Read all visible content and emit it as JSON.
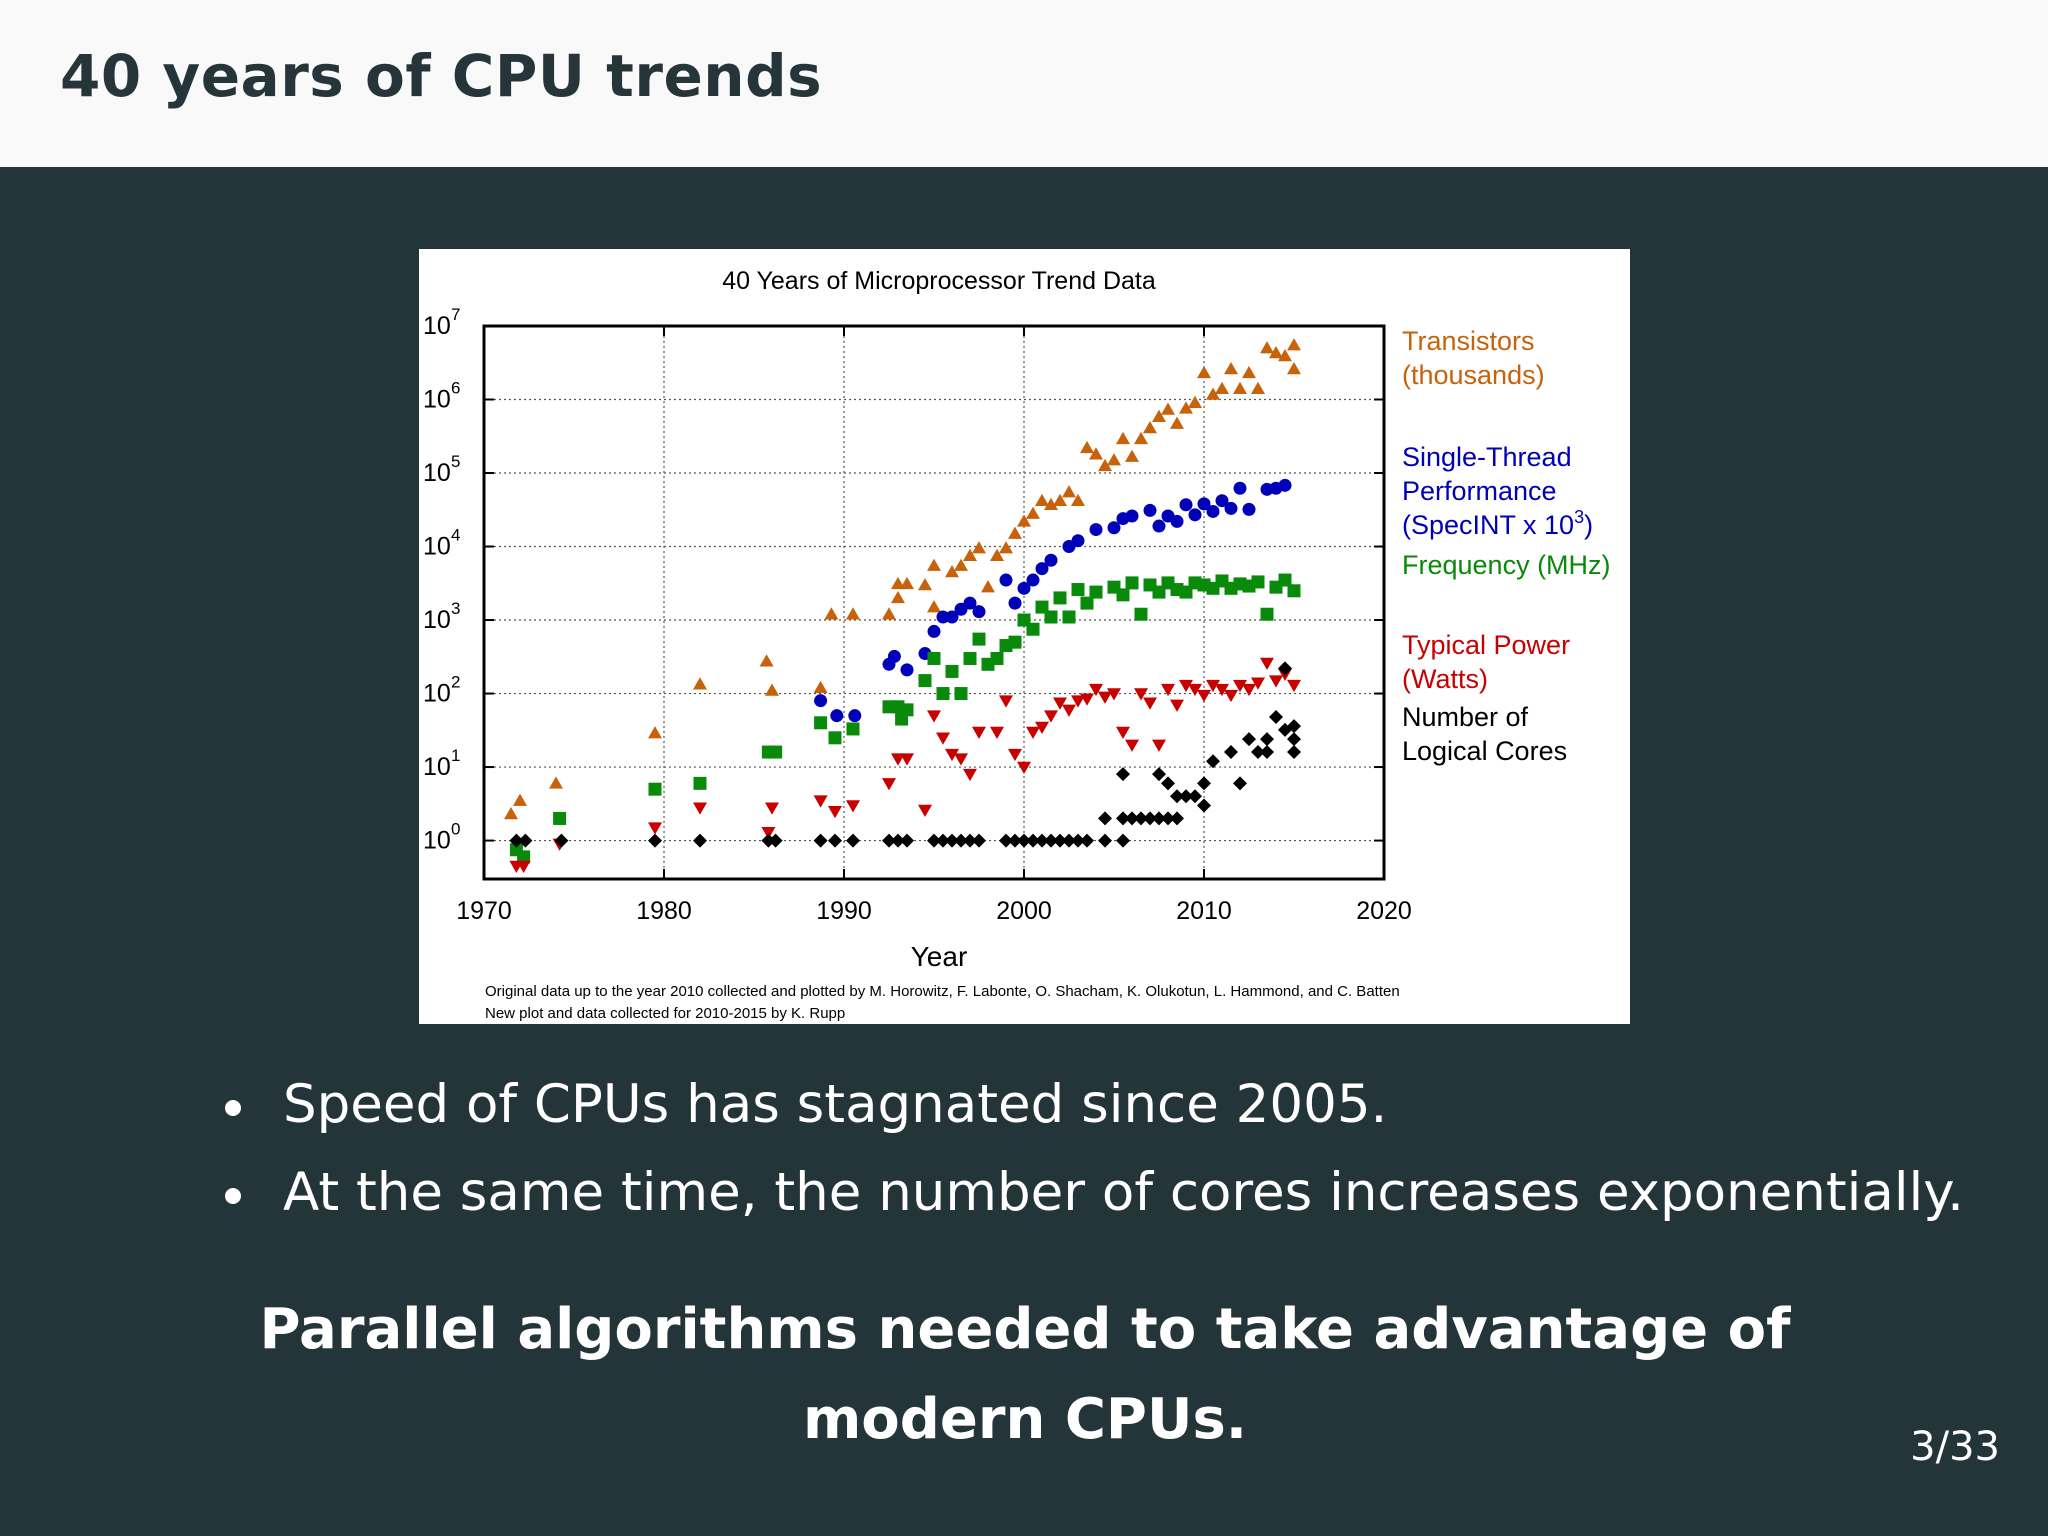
{
  "slide": {
    "title": "40 years of CPU trends",
    "bullets": [
      "Speed of CPUs has stagnated since 2005.",
      "At the same time, the number of cores increases exponentially."
    ],
    "conclusion": "Parallel algorithms needed to take advantage of modern CPUs.",
    "page": "3/33",
    "colors": {
      "header_bg": "#f9f9f9",
      "slide_bg": "#243539",
      "title_text": "#263539"
    }
  },
  "chart_data": {
    "type": "scatter",
    "title": "40 Years of Microprocessor Trend Data",
    "xlabel": "Year",
    "ylabel": "",
    "yscale": "log",
    "xlim": [
      1970,
      2020
    ],
    "ylim": [
      0.3,
      10000000
    ],
    "xticks": [
      "1970",
      "1980",
      "1990",
      "2000",
      "2010",
      "2020"
    ],
    "yticks": [
      {
        "base": "10",
        "exp": "0"
      },
      {
        "base": "10",
        "exp": "1"
      },
      {
        "base": "10",
        "exp": "2"
      },
      {
        "base": "10",
        "exp": "3"
      },
      {
        "base": "10",
        "exp": "4"
      },
      {
        "base": "10",
        "exp": "5"
      },
      {
        "base": "10",
        "exp": "6"
      },
      {
        "base": "10",
        "exp": "7"
      }
    ],
    "grid": true,
    "legend_position": "right",
    "footnote": [
      "Original data up to the year 2010 collected and plotted by M. Horowitz, F. Labonte, O. Shacham, K. Olukotun, L. Hammond, and C. Batten",
      "New plot and data collected for 2010-2015 by K. Rupp"
    ],
    "series": [
      {
        "name_lines": [
          "Transistors",
          "(thousands)"
        ],
        "color": "#c8620a",
        "marker": "triangle-up",
        "points": [
          [
            1971.5,
            2.3
          ],
          [
            1972,
            3.5
          ],
          [
            1974,
            6
          ],
          [
            1979.5,
            29
          ],
          [
            1982,
            134
          ],
          [
            1985.7,
            275
          ],
          [
            1986,
            110
          ],
          [
            1988.7,
            120
          ],
          [
            1989.3,
            1200
          ],
          [
            1990.5,
            1200
          ],
          [
            1992.5,
            1200
          ],
          [
            1993,
            3100
          ],
          [
            1993.5,
            3100
          ],
          [
            1993,
            2000
          ],
          [
            1994.5,
            3000
          ],
          [
            1995,
            5500
          ],
          [
            1995,
            1500
          ],
          [
            1996,
            4500
          ],
          [
            1996.5,
            5500
          ],
          [
            1997,
            7500
          ],
          [
            1997.5,
            9500
          ],
          [
            1998.5,
            7500
          ],
          [
            1998,
            2800
          ],
          [
            1999,
            9500
          ],
          [
            1999.5,
            15000
          ],
          [
            2000,
            22000
          ],
          [
            2000.5,
            28000
          ],
          [
            2001,
            42000
          ],
          [
            2001.5,
            37000
          ],
          [
            2002,
            42000
          ],
          [
            2002.5,
            55000
          ],
          [
            2003,
            42000
          ],
          [
            2003.5,
            220000
          ],
          [
            2004,
            180000
          ],
          [
            2004.5,
            125000
          ],
          [
            2005,
            150000
          ],
          [
            2005.5,
            291000
          ],
          [
            2006,
            167000
          ],
          [
            2006.5,
            291000
          ],
          [
            2007,
            410000
          ],
          [
            2007.5,
            582000
          ],
          [
            2008,
            731000
          ],
          [
            2008.5,
            470000
          ],
          [
            2009,
            758000
          ],
          [
            2009.5,
            904000
          ],
          [
            2010,
            2300000
          ],
          [
            2010.5,
            1170000
          ],
          [
            2011,
            1400000
          ],
          [
            2011.5,
            2600000
          ],
          [
            2012,
            1400000
          ],
          [
            2012.5,
            2300000
          ],
          [
            2013,
            1400000
          ],
          [
            2013.5,
            5000000
          ],
          [
            2014,
            4300000
          ],
          [
            2014.5,
            3900000
          ],
          [
            2015,
            5500000
          ],
          [
            2015,
            2600000
          ]
        ]
      },
      {
        "name_lines": [
          "Single-Thread",
          "Performance",
          "(SpecINT x 10^3)"
        ],
        "color": "#0000b8",
        "marker": "circle",
        "points": [
          [
            1988.7,
            80
          ],
          [
            1989.6,
            50
          ],
          [
            1990.6,
            50
          ],
          [
            1992.5,
            250
          ],
          [
            1992.8,
            320
          ],
          [
            1993.5,
            210
          ],
          [
            1994.5,
            350
          ],
          [
            1995,
            700
          ],
          [
            1995.5,
            1100
          ],
          [
            1996,
            1100
          ],
          [
            1996.5,
            1400
          ],
          [
            1997,
            1700
          ],
          [
            1997.5,
            1300
          ],
          [
            1999,
            3500
          ],
          [
            1999.5,
            1700
          ],
          [
            2000,
            2700
          ],
          [
            2000.5,
            3500
          ],
          [
            2001,
            5000
          ],
          [
            2001.5,
            6500
          ],
          [
            2002.5,
            10000
          ],
          [
            2003,
            12000
          ],
          [
            2004,
            17000
          ],
          [
            2005,
            18000
          ],
          [
            2005.5,
            24000
          ],
          [
            2006,
            26000
          ],
          [
            2007,
            31000
          ],
          [
            2007.5,
            19000
          ],
          [
            2008,
            26000
          ],
          [
            2008.5,
            22000
          ],
          [
            2009,
            37000
          ],
          [
            2009.5,
            27000
          ],
          [
            2010,
            38000
          ],
          [
            2010.5,
            30000
          ],
          [
            2011,
            42000
          ],
          [
            2011.5,
            33000
          ],
          [
            2012,
            62000
          ],
          [
            2012.5,
            32000
          ],
          [
            2013.5,
            60000
          ],
          [
            2014,
            62000
          ],
          [
            2014.5,
            68000
          ]
        ]
      },
      {
        "name_lines": [
          "Frequency (MHz)"
        ],
        "color": "#0a8a0a",
        "marker": "square",
        "points": [
          [
            1971.8,
            0.75
          ],
          [
            1972.2,
            0.6
          ],
          [
            1974.2,
            2
          ],
          [
            1979.5,
            5
          ],
          [
            1982,
            6
          ],
          [
            1985.8,
            16
          ],
          [
            1986.2,
            16
          ],
          [
            1988.7,
            40
          ],
          [
            1989.5,
            25
          ],
          [
            1990.5,
            33
          ],
          [
            1992.5,
            66
          ],
          [
            1993,
            66
          ],
          [
            1993.5,
            60
          ],
          [
            1993.2,
            45
          ],
          [
            1994.5,
            150
          ],
          [
            1995,
            300
          ],
          [
            1995.5,
            100
          ],
          [
            1996,
            200
          ],
          [
            1996.5,
            100
          ],
          [
            1997,
            300
          ],
          [
            1997.5,
            550
          ],
          [
            1998,
            250
          ],
          [
            1998.5,
            300
          ],
          [
            1999,
            450
          ],
          [
            1999.5,
            500
          ],
          [
            2000,
            1000
          ],
          [
            2000.5,
            750
          ],
          [
            2001,
            1500
          ],
          [
            2001.5,
            1100
          ],
          [
            2002,
            2000
          ],
          [
            2002.5,
            1100
          ],
          [
            2003,
            2600
          ],
          [
            2003.5,
            1700
          ],
          [
            2004,
            2400
          ],
          [
            2005,
            2800
          ],
          [
            2005.5,
            2200
          ],
          [
            2006,
            3200
          ],
          [
            2006.5,
            1200
          ],
          [
            2007,
            3000
          ],
          [
            2007.5,
            2400
          ],
          [
            2008,
            3200
          ],
          [
            2008.5,
            2600
          ],
          [
            2009,
            2400
          ],
          [
            2009.5,
            3200
          ],
          [
            2010,
            3000
          ],
          [
            2010.5,
            2700
          ],
          [
            2011,
            3400
          ],
          [
            2011.5,
            2700
          ],
          [
            2012,
            3100
          ],
          [
            2012.5,
            2900
          ],
          [
            2013,
            3300
          ],
          [
            2013.5,
            1200
          ],
          [
            2014,
            2800
          ],
          [
            2014.5,
            3500
          ],
          [
            2015,
            2500
          ]
        ]
      },
      {
        "name_lines": [
          "Typical Power",
          "(Watts)"
        ],
        "color": "#c80000",
        "marker": "triangle-down",
        "points": [
          [
            1971.8,
            0.45
          ],
          [
            1972.2,
            0.45
          ],
          [
            1974.2,
            0.9
          ],
          [
            1979.5,
            1.5
          ],
          [
            1982,
            2.8
          ],
          [
            1985.8,
            1.3
          ],
          [
            1986,
            2.8
          ],
          [
            1988.7,
            3.5
          ],
          [
            1989.5,
            2.5
          ],
          [
            1990.5,
            3
          ],
          [
            1992.5,
            6
          ],
          [
            1993,
            13
          ],
          [
            1993.5,
            13
          ],
          [
            1994.5,
            2.6
          ],
          [
            1995,
            50
          ],
          [
            1995.5,
            25
          ],
          [
            1996,
            15
          ],
          [
            1996.5,
            13
          ],
          [
            1997,
            8
          ],
          [
            1997.5,
            30
          ],
          [
            1998.5,
            30
          ],
          [
            1999,
            80
          ],
          [
            1999.5,
            15
          ],
          [
            2000,
            10
          ],
          [
            2000.5,
            30
          ],
          [
            2001,
            35
          ],
          [
            2001.5,
            50
          ],
          [
            2002,
            75
          ],
          [
            2002.5,
            60
          ],
          [
            2003,
            80
          ],
          [
            2003.5,
            85
          ],
          [
            2004,
            115
          ],
          [
            2004.5,
            90
          ],
          [
            2005,
            100
          ],
          [
            2005.5,
            30
          ],
          [
            2006,
            20
          ],
          [
            2006.5,
            100
          ],
          [
            2007,
            75
          ],
          [
            2007.5,
            20
          ],
          [
            2008,
            115
          ],
          [
            2008.5,
            70
          ],
          [
            2009,
            130
          ],
          [
            2009.5,
            115
          ],
          [
            2010,
            95
          ],
          [
            2010.5,
            130
          ],
          [
            2011,
            115
          ],
          [
            2011.5,
            95
          ],
          [
            2012,
            130
          ],
          [
            2012.5,
            115
          ],
          [
            2013,
            140
          ],
          [
            2013.5,
            260
          ],
          [
            2014,
            150
          ],
          [
            2014.5,
            185
          ],
          [
            2015,
            130
          ]
        ]
      },
      {
        "name_lines": [
          "Number of",
          "Logical Cores"
        ],
        "color": "#000000",
        "marker": "diamond",
        "points": [
          [
            1971.8,
            1
          ],
          [
            1972.3,
            1
          ],
          [
            1974.3,
            1
          ],
          [
            1979.5,
            1
          ],
          [
            1982,
            1
          ],
          [
            1985.8,
            1
          ],
          [
            1986.2,
            1
          ],
          [
            1988.7,
            1
          ],
          [
            1989.5,
            1
          ],
          [
            1990.5,
            1
          ],
          [
            1992.5,
            1
          ],
          [
            1993,
            1
          ],
          [
            1993.5,
            1
          ],
          [
            1995,
            1
          ],
          [
            1995.5,
            1
          ],
          [
            1996,
            1
          ],
          [
            1996.5,
            1
          ],
          [
            1997,
            1
          ],
          [
            1997.5,
            1
          ],
          [
            1999,
            1
          ],
          [
            1999.5,
            1
          ],
          [
            2000,
            1
          ],
          [
            2000.5,
            1
          ],
          [
            2001,
            1
          ],
          [
            2001.5,
            1
          ],
          [
            2002,
            1
          ],
          [
            2002.5,
            1
          ],
          [
            2003,
            1
          ],
          [
            2003.5,
            1
          ],
          [
            2004.5,
            1
          ],
          [
            2005.5,
            1
          ],
          [
            2004.5,
            2
          ],
          [
            2005.5,
            2
          ],
          [
            2006,
            2
          ],
          [
            2006.5,
            2
          ],
          [
            2007,
            2
          ],
          [
            2007.5,
            2
          ],
          [
            2008,
            2
          ],
          [
            2008.5,
            2
          ],
          [
            2005.5,
            8
          ],
          [
            2007.5,
            8
          ],
          [
            2008,
            6
          ],
          [
            2008.5,
            4
          ],
          [
            2009,
            4
          ],
          [
            2009.5,
            4
          ],
          [
            2010,
            3
          ],
          [
            2010,
            6
          ],
          [
            2010.5,
            12
          ],
          [
            2011.5,
            16
          ],
          [
            2012,
            6
          ],
          [
            2012.5,
            24
          ],
          [
            2013,
            16
          ],
          [
            2013.5,
            16
          ],
          [
            2013.5,
            24
          ],
          [
            2014,
            48
          ],
          [
            2014.5,
            32
          ],
          [
            2015,
            24
          ],
          [
            2015,
            36
          ],
          [
            2015,
            16
          ],
          [
            2014.5,
            220
          ]
        ]
      }
    ]
  }
}
